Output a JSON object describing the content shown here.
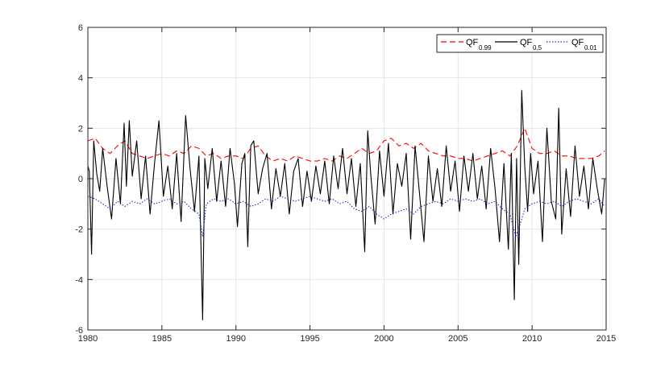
{
  "chart_data": {
    "type": "line",
    "title": "",
    "xlabel": "",
    "ylabel": "",
    "xlim": [
      1980,
      2015
    ],
    "ylim": [
      -6,
      6
    ],
    "xticks": [
      1980,
      1985,
      1990,
      1995,
      2000,
      2005,
      2010,
      2015
    ],
    "yticks": [
      -6,
      -4,
      -2,
      0,
      2,
      4,
      6
    ],
    "x_tick_labels": [
      "1980",
      "1985",
      "1990",
      "1995",
      "2000",
      "2005",
      "2010",
      "2015"
    ],
    "y_tick_labels": [
      "-6",
      "-4",
      "-2",
      "0",
      "2",
      "4",
      "6"
    ],
    "grid": true,
    "legend_position": "top-right",
    "series": [
      {
        "key": "qf099",
        "legend_base": "QF",
        "legend_sub": "0.99",
        "color": "#ff0000",
        "style": "dashed",
        "x": [
          1980.0,
          1980.5,
          1981.0,
          1981.5,
          1982.0,
          1982.5,
          1983.0,
          1983.5,
          1984.0,
          1984.5,
          1985.0,
          1985.5,
          1986.0,
          1986.5,
          1987.0,
          1987.5,
          1988.0,
          1988.5,
          1989.0,
          1989.5,
          1990.0,
          1990.5,
          1991.0,
          1991.5,
          1992.0,
          1992.5,
          1993.0,
          1993.5,
          1994.0,
          1994.5,
          1995.0,
          1995.5,
          1996.0,
          1996.5,
          1997.0,
          1997.5,
          1998.0,
          1998.5,
          1999.0,
          1999.5,
          2000.0,
          2000.5,
          2001.0,
          2001.5,
          2002.0,
          2002.5,
          2003.0,
          2003.5,
          2004.0,
          2004.5,
          2005.0,
          2005.5,
          2006.0,
          2006.5,
          2007.0,
          2007.5,
          2008.0,
          2008.5,
          2009.0,
          2009.5,
          2010.0,
          2010.5,
          2011.0,
          2011.5,
          2012.0,
          2012.5,
          2013.0,
          2013.5,
          2014.0,
          2014.5,
          2014.9
        ],
        "y": [
          1.5,
          1.6,
          1.2,
          1.0,
          1.3,
          1.5,
          1.0,
          0.9,
          0.8,
          0.9,
          1.0,
          0.9,
          1.1,
          1.0,
          1.3,
          1.2,
          0.9,
          1.0,
          0.8,
          0.9,
          0.9,
          0.8,
          1.2,
          1.3,
          0.9,
          0.7,
          0.8,
          0.7,
          0.9,
          0.8,
          0.7,
          0.7,
          0.8,
          0.7,
          0.9,
          0.8,
          1.0,
          1.2,
          1.0,
          1.1,
          1.5,
          1.6,
          1.3,
          1.4,
          1.2,
          1.4,
          1.1,
          1.0,
          0.9,
          0.9,
          0.8,
          0.8,
          0.7,
          0.8,
          0.9,
          1.0,
          1.1,
          0.9,
          1.3,
          2.0,
          1.2,
          1.0,
          1.0,
          1.1,
          0.9,
          0.9,
          0.8,
          0.8,
          0.8,
          0.9,
          1.1
        ]
      },
      {
        "key": "qf05",
        "legend_base": "QF",
        "legend_sub": "0.5",
        "color": "#000000",
        "style": "solid",
        "x": [
          1980.0,
          1980.1,
          1980.25,
          1980.4,
          1980.6,
          1980.8,
          1981.0,
          1981.3,
          1981.6,
          1981.9,
          1982.2,
          1982.45,
          1982.6,
          1982.8,
          1983.0,
          1983.3,
          1983.6,
          1983.9,
          1984.2,
          1984.5,
          1984.8,
          1985.1,
          1985.4,
          1985.7,
          1986.0,
          1986.3,
          1986.6,
          1986.9,
          1987.2,
          1987.5,
          1987.75,
          1987.9,
          1988.1,
          1988.4,
          1988.7,
          1989.0,
          1989.3,
          1989.6,
          1989.9,
          1990.1,
          1990.4,
          1990.6,
          1990.8,
          1991.0,
          1991.2,
          1991.5,
          1991.8,
          1992.1,
          1992.4,
          1992.7,
          1993.0,
          1993.3,
          1993.6,
          1993.9,
          1994.2,
          1994.5,
          1994.8,
          1995.1,
          1995.4,
          1995.7,
          1996.0,
          1996.3,
          1996.6,
          1996.9,
          1997.2,
          1997.5,
          1997.8,
          1998.1,
          1998.4,
          1998.7,
          1998.9,
          1999.1,
          1999.4,
          1999.7,
          2000.0,
          2000.3,
          2000.6,
          2000.9,
          2001.2,
          2001.5,
          2001.8,
          2002.1,
          2002.4,
          2002.7,
          2003.0,
          2003.3,
          2003.6,
          2003.9,
          2004.2,
          2004.5,
          2004.8,
          2005.1,
          2005.4,
          2005.7,
          2006.0,
          2006.3,
          2006.6,
          2006.9,
          2007.2,
          2007.5,
          2007.8,
          2008.1,
          2008.4,
          2008.6,
          2008.8,
          2008.95,
          2009.1,
          2009.3,
          2009.5,
          2009.7,
          2009.9,
          2010.1,
          2010.4,
          2010.7,
          2011.0,
          2011.3,
          2011.6,
          2011.8,
          2012.0,
          2012.3,
          2012.6,
          2012.9,
          2013.2,
          2013.5,
          2013.8,
          2014.1,
          2014.4,
          2014.7,
          2014.9
        ],
        "y": [
          0.5,
          0.3,
          -3.0,
          1.5,
          0.2,
          -0.5,
          1.2,
          -0.3,
          -1.6,
          0.8,
          -1.0,
          2.2,
          -0.3,
          2.3,
          0.1,
          1.5,
          -0.8,
          0.9,
          -1.4,
          0.6,
          2.3,
          -0.7,
          0.5,
          -1.2,
          1.0,
          -1.7,
          2.5,
          0.4,
          -1.3,
          0.9,
          -5.6,
          0.8,
          -0.4,
          1.2,
          -0.9,
          0.7,
          -1.1,
          1.2,
          -0.2,
          -1.9,
          0.6,
          1.0,
          -2.7,
          1.3,
          1.5,
          -0.6,
          0.4,
          1.0,
          -1.2,
          0.4,
          -0.7,
          0.6,
          -1.4,
          0.3,
          0.8,
          -1.1,
          0.3,
          -0.9,
          0.5,
          -0.6,
          0.7,
          -1.0,
          0.9,
          -0.4,
          1.2,
          -0.6,
          0.8,
          -1.1,
          0.6,
          -2.9,
          1.9,
          0.2,
          -1.8,
          1.1,
          -0.7,
          1.4,
          -1.4,
          0.6,
          -0.3,
          1.0,
          -2.4,
          1.3,
          -0.6,
          -2.5,
          0.9,
          -0.9,
          0.4,
          -1.1,
          1.3,
          -0.5,
          0.7,
          -1.3,
          0.9,
          -0.5,
          1.0,
          -0.8,
          0.5,
          -1.2,
          1.2,
          -0.4,
          -2.5,
          0.6,
          -2.8,
          1.0,
          -4.8,
          0.8,
          -3.4,
          3.5,
          0.5,
          -1.3,
          1.0,
          -0.6,
          0.7,
          -2.5,
          2.0,
          -0.9,
          -1.6,
          2.8,
          -2.2,
          0.4,
          -1.5,
          1.3,
          -0.7,
          0.5,
          -1.2,
          0.8,
          -0.4,
          -1.4,
          0.0
        ]
      },
      {
        "key": "qf001",
        "legend_base": "QF",
        "legend_sub": "0.01",
        "color": "#1f2dcc",
        "style": "dotted",
        "x": [
          1980.0,
          1980.5,
          1981.0,
          1981.5,
          1982.0,
          1982.5,
          1983.0,
          1983.5,
          1984.0,
          1984.5,
          1985.0,
          1985.5,
          1986.0,
          1986.5,
          1987.0,
          1987.5,
          1987.75,
          1988.0,
          1988.5,
          1989.0,
          1989.5,
          1990.0,
          1990.5,
          1991.0,
          1991.5,
          1992.0,
          1992.5,
          1993.0,
          1993.5,
          1994.0,
          1994.5,
          1995.0,
          1995.5,
          1996.0,
          1996.5,
          1997.0,
          1997.5,
          1998.0,
          1998.5,
          1999.0,
          1999.5,
          2000.0,
          2000.5,
          2001.0,
          2001.5,
          2002.0,
          2002.5,
          2003.0,
          2003.5,
          2004.0,
          2004.5,
          2005.0,
          2005.5,
          2006.0,
          2006.5,
          2007.0,
          2007.5,
          2008.0,
          2008.5,
          2008.9,
          2009.2,
          2009.5,
          2010.0,
          2010.5,
          2011.0,
          2011.5,
          2012.0,
          2012.5,
          2013.0,
          2013.5,
          2014.0,
          2014.5,
          2014.9
        ],
        "y": [
          -0.7,
          -0.8,
          -1.0,
          -1.2,
          -0.9,
          -1.1,
          -0.9,
          -1.0,
          -0.8,
          -1.0,
          -0.9,
          -0.8,
          -1.0,
          -0.9,
          -1.2,
          -1.4,
          -2.3,
          -1.0,
          -0.8,
          -0.9,
          -0.8,
          -1.0,
          -0.9,
          -1.1,
          -1.0,
          -0.8,
          -0.9,
          -0.7,
          -0.8,
          -0.9,
          -0.8,
          -0.7,
          -0.8,
          -0.9,
          -0.8,
          -1.0,
          -0.9,
          -1.2,
          -1.3,
          -1.1,
          -1.4,
          -1.6,
          -1.4,
          -1.3,
          -1.2,
          -1.4,
          -1.1,
          -1.0,
          -0.9,
          -1.0,
          -0.8,
          -0.9,
          -0.8,
          -0.9,
          -0.8,
          -1.0,
          -0.9,
          -1.2,
          -1.4,
          -2.3,
          -1.8,
          -1.2,
          -1.0,
          -0.9,
          -1.0,
          -0.9,
          -1.1,
          -0.9,
          -0.8,
          -0.9,
          -1.0,
          -0.8,
          -1.1
        ]
      }
    ]
  }
}
